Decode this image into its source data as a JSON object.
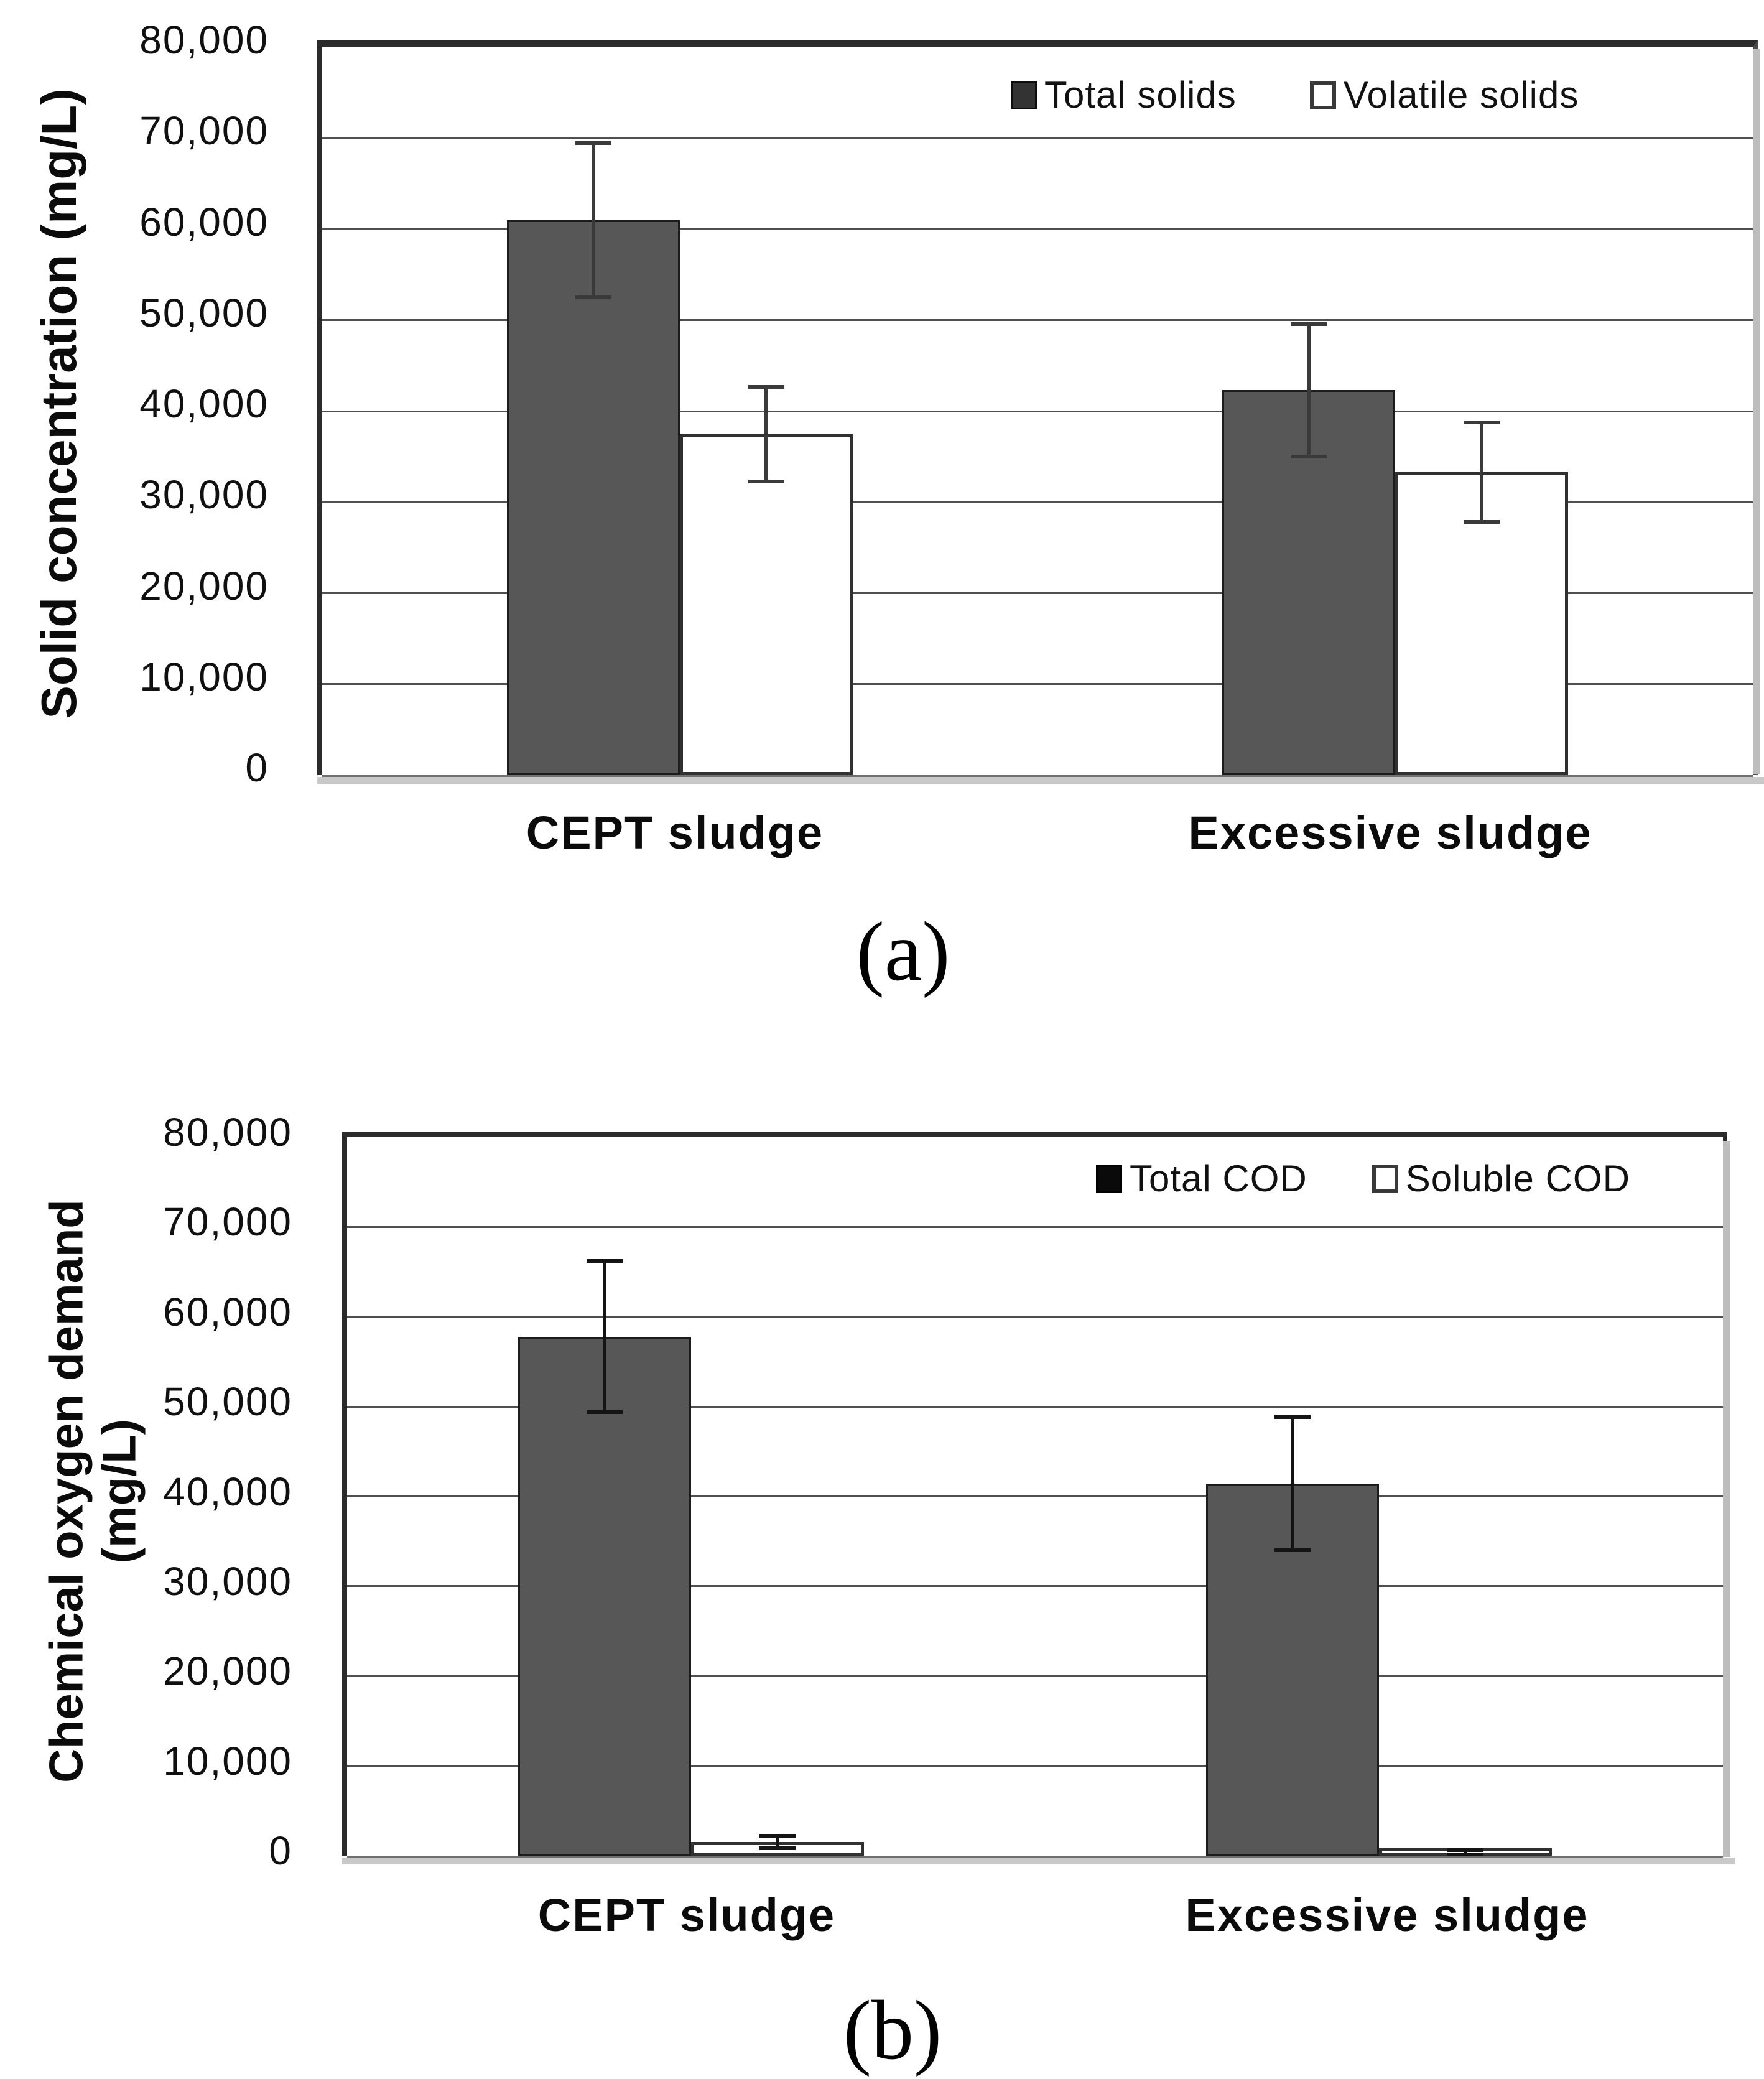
{
  "figure": {
    "background": "#ffffff",
    "panel_count": 2
  },
  "styles": {
    "dark_bar_fill": "#575757",
    "dark_bar_border": "#1c1c1c",
    "light_bar_fill": "#ffffff",
    "light_bar_border": "#303030",
    "grid_color": "#4f4f4f",
    "baseline_color": "#c9c9c9",
    "frame_color": "#2b2b2b",
    "error_color_panel_a": "#3a3a3a",
    "error_color_panel_b": "#141414",
    "text_color": "#111111"
  },
  "chart_data": [
    {
      "type": "bar",
      "title": "",
      "caption": "(a)",
      "xlabel": "",
      "ylabel": "Solid concentration (mg/L)",
      "ylabel_lines": [
        "Solid concentration (mg/L)"
      ],
      "categories": [
        "CEPT sludge",
        "Excessive sludge"
      ],
      "series": [
        {
          "name": "Total solids",
          "values": [
            61000,
            42300
          ],
          "errors": [
            8500,
            7300
          ],
          "style": "dark"
        },
        {
          "name": "Volatile solids",
          "values": [
            37500,
            33300
          ],
          "errors": [
            5200,
            5500
          ],
          "style": "light"
        }
      ],
      "ylim": [
        0,
        80000
      ],
      "ytick_step": 10000,
      "ytick_labels": [
        "80,000",
        "70,000",
        "60,000",
        "50,000",
        "40,000",
        "30,000",
        "20,000",
        "10,000",
        "0"
      ],
      "grid": "horizontal",
      "legend_position": "top-right-inside"
    },
    {
      "type": "bar",
      "title": "",
      "caption": "(b)",
      "xlabel": "",
      "ylabel": "Chemical oxygen demand (mg/L)",
      "ylabel_lines": [
        "Chemical oxygen demand",
        "(mg/L)"
      ],
      "categories": [
        "CEPT sludge",
        "Excessive sludge"
      ],
      "series": [
        {
          "name": "Total COD",
          "values": [
            57800,
            41400
          ],
          "errors": [
            8400,
            7400
          ],
          "style": "dark"
        },
        {
          "name": "Soluble COD",
          "values": [
            1500,
            400
          ],
          "errors": [
            700,
            250
          ],
          "style": "light"
        }
      ],
      "ylim": [
        0,
        80000
      ],
      "ytick_step": 10000,
      "ytick_labels": [
        "80,000",
        "70,000",
        "60,000",
        "50,000",
        "40,000",
        "30,000",
        "20,000",
        "10,000",
        "0"
      ],
      "grid": "horizontal",
      "legend_position": "top-right-inside"
    }
  ]
}
